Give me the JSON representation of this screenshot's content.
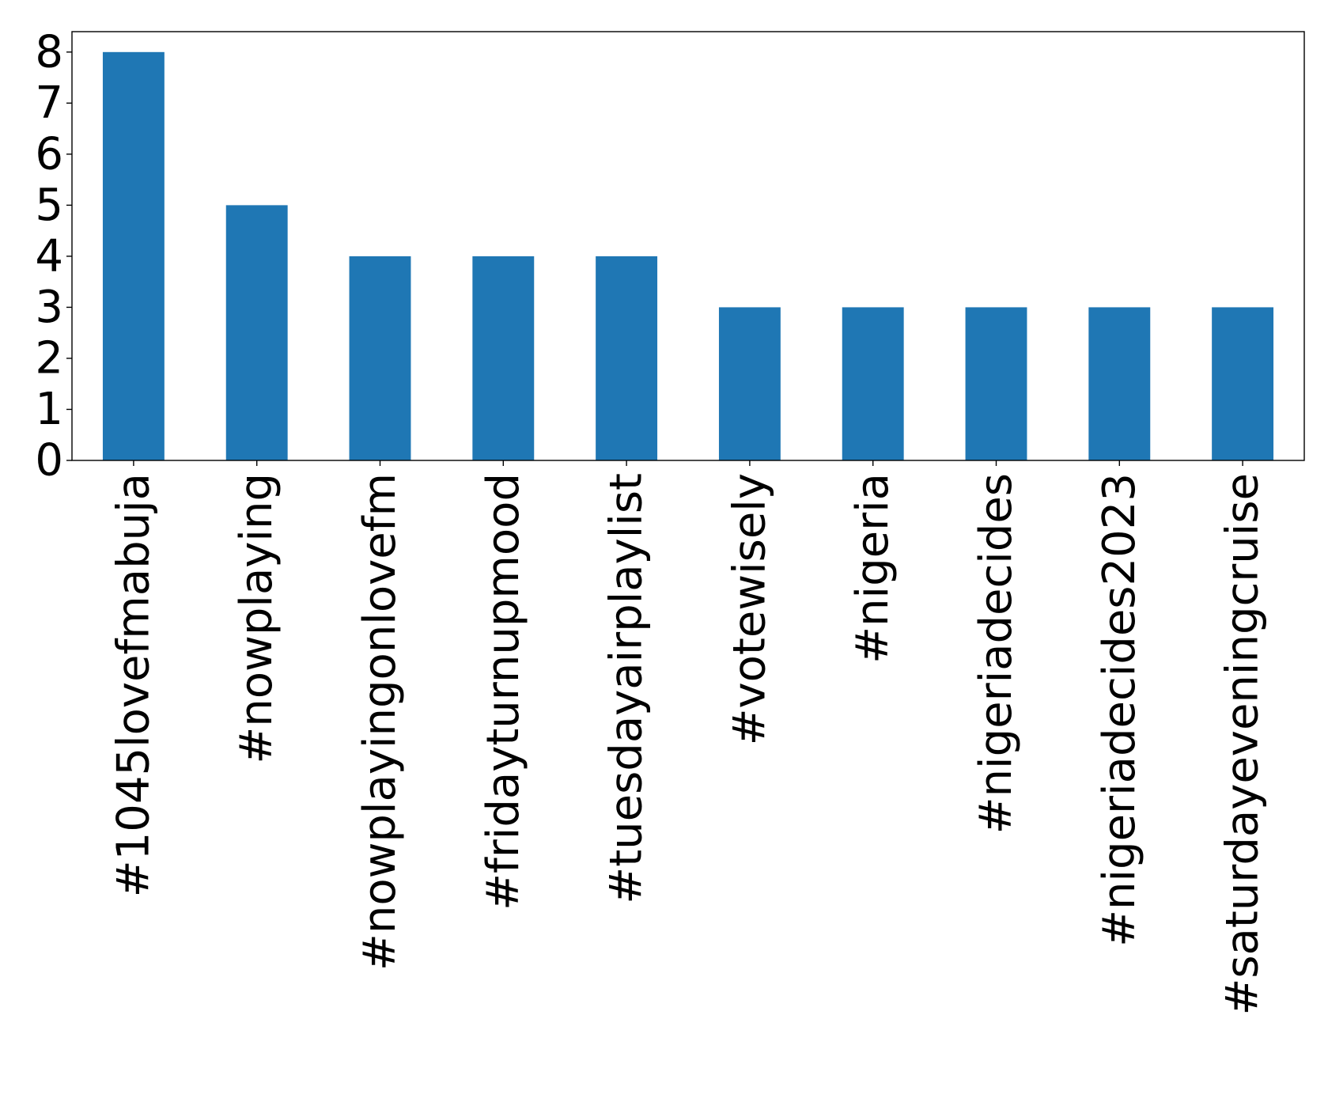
{
  "chart_data": {
    "type": "bar",
    "title": "",
    "xlabel": "",
    "ylabel": "",
    "categories": [
      "#1045lovefmabuja",
      "#nowplaying",
      "#nowplayingonlovefm",
      "#fridayturnupmood",
      "#tuesdayairplaylist",
      "#votewisely",
      "#nigeria",
      "#nigeriadecides",
      "#nigeriadecides2023",
      "#saturdayeveningcruise"
    ],
    "values": [
      8,
      5,
      4,
      4,
      4,
      3,
      3,
      3,
      3,
      3
    ],
    "ylim": [
      0,
      8.4
    ],
    "yticks": [
      0,
      1,
      2,
      3,
      4,
      5,
      6,
      7,
      8
    ],
    "grid": false,
    "legend": "none",
    "bar_color": "#1f77b4"
  }
}
